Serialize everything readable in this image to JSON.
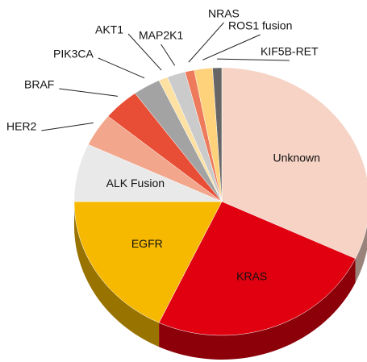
{
  "chart_data": {
    "type": "pie",
    "categories": [
      "Unknown",
      "KRAS",
      "EGFR",
      "ALK Fusion",
      "HER2",
      "BRAF",
      "PIK3CA",
      "AKT1",
      "MAP2K1",
      "NRAS",
      "ROS1 fusion",
      "KIF5B-RET"
    ],
    "values": [
      32,
      25,
      18,
      7,
      4,
      4,
      3,
      1,
      2,
      1,
      2,
      1
    ],
    "colors": [
      "#f6d3c4",
      "#e0000f",
      "#f6b900",
      "#e9e9e9",
      "#f2a78c",
      "#e84e36",
      "#a3a3a3",
      "#fde1a3",
      "#cbcbcb",
      "#ec7a5b",
      "#fdd27b",
      "#666666"
    ]
  }
}
